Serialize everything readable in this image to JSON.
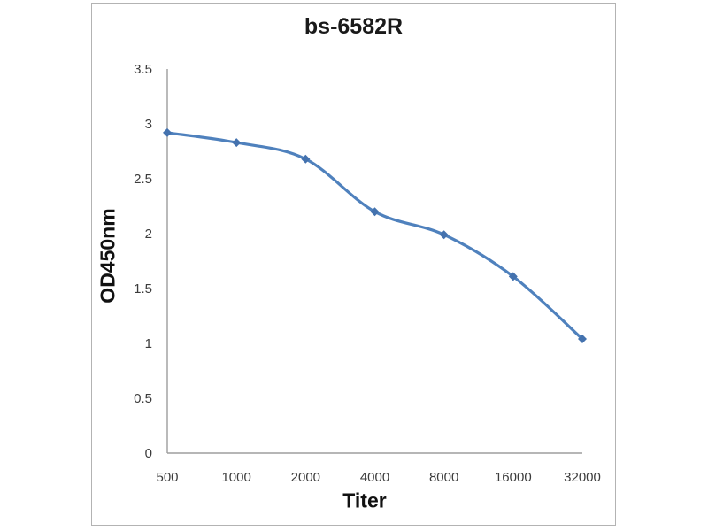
{
  "chart_data": {
    "type": "line",
    "title": "bs-6582R",
    "xlabel": "Titer",
    "ylabel": "OD450nm",
    "categories": [
      "500",
      "1000",
      "2000",
      "4000",
      "8000",
      "16000",
      "32000"
    ],
    "series": [
      {
        "name": "bs-6582R",
        "values": [
          2.92,
          2.83,
          2.68,
          2.2,
          1.99,
          1.61,
          1.04
        ]
      }
    ],
    "ylim": [
      0,
      3.5
    ],
    "y_tick_labels": [
      "0",
      "0.5",
      "1",
      "1.5",
      "2",
      "2.5",
      "3",
      "3.5"
    ],
    "grid": false,
    "legend_position": "none",
    "marker": "diamond",
    "line_color": "#4f81bd",
    "marker_color": "#4472ae",
    "axis_color": "#9d9d9d",
    "tick_label_color": "#3c3c3c",
    "title_color": "#1a1a1a",
    "border_color": "#b3b3b3"
  }
}
